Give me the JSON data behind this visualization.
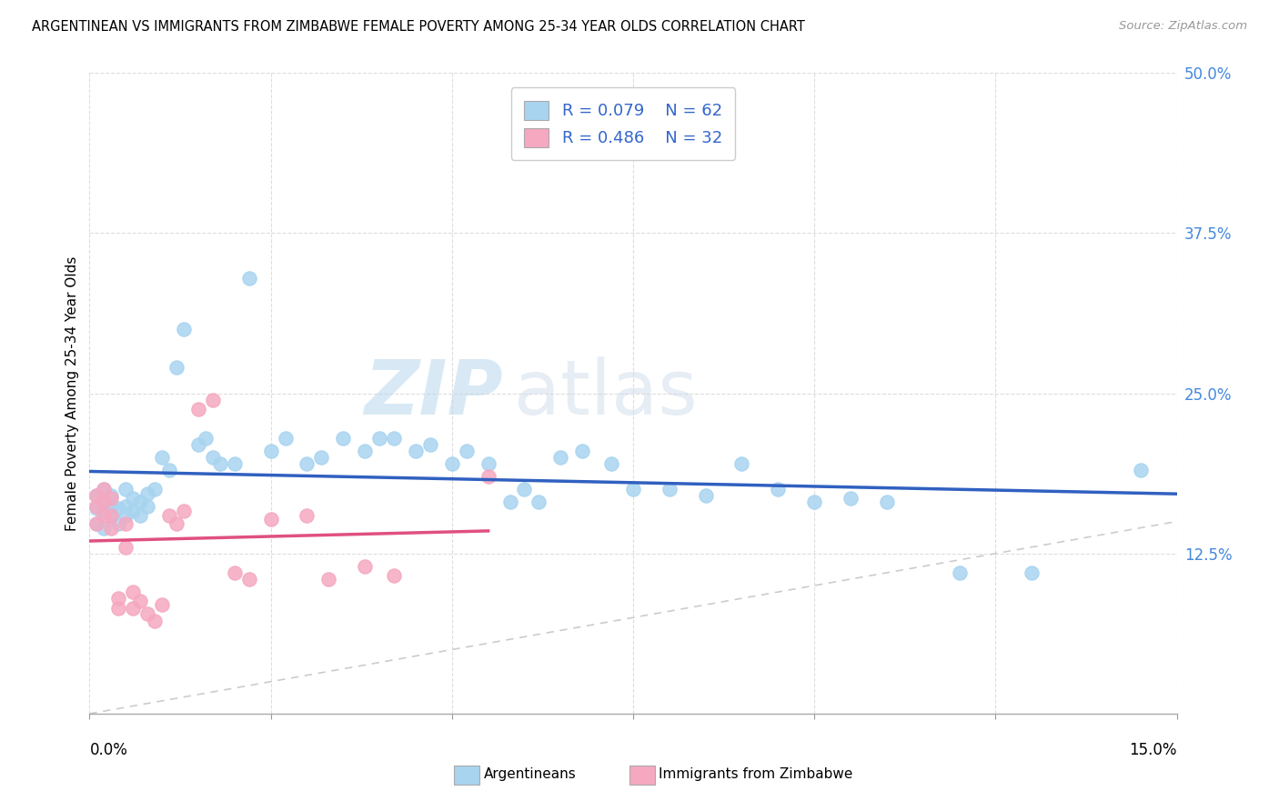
{
  "title": "ARGENTINEAN VS IMMIGRANTS FROM ZIMBABWE FEMALE POVERTY AMONG 25-34 YEAR OLDS CORRELATION CHART",
  "source": "Source: ZipAtlas.com",
  "ylabel": "Female Poverty Among 25-34 Year Olds",
  "yaxis_ticks": [
    0.0,
    0.125,
    0.25,
    0.375,
    0.5
  ],
  "yaxis_tick_labels": [
    "",
    "12.5%",
    "25.0%",
    "37.5%",
    "50.0%"
  ],
  "xaxis_ticks": [
    0.0,
    0.025,
    0.05,
    0.075,
    0.1,
    0.125,
    0.15
  ],
  "xlim": [
    0.0,
    0.15
  ],
  "ylim": [
    0.0,
    0.5
  ],
  "legend_R1": "R = 0.079",
  "legend_N1": "N = 62",
  "legend_R2": "R = 0.486",
  "legend_N2": "N = 32",
  "color_argentinean": "#A8D4F0",
  "color_zimbabwe": "#F5A8C0",
  "color_blue_line": "#3060C0",
  "color_pink_line": "#E05080",
  "color_diag_line": "#CCCCCC",
  "watermark_zip": "ZIP",
  "watermark_atlas": "atlas",
  "legend1_label": "Argentineans",
  "legend2_label": "Immigrants from Zimbabwe",
  "arg_x": [
    0.001,
    0.001,
    0.001,
    0.002,
    0.002,
    0.002,
    0.002,
    0.003,
    0.003,
    0.003,
    0.004,
    0.004,
    0.005,
    0.005,
    0.005,
    0.006,
    0.006,
    0.007,
    0.007,
    0.008,
    0.008,
    0.009,
    0.01,
    0.011,
    0.012,
    0.013,
    0.015,
    0.016,
    0.017,
    0.018,
    0.02,
    0.022,
    0.025,
    0.027,
    0.03,
    0.032,
    0.035,
    0.038,
    0.04,
    0.042,
    0.045,
    0.047,
    0.05,
    0.052,
    0.055,
    0.058,
    0.06,
    0.062,
    0.065,
    0.068,
    0.072,
    0.075,
    0.08,
    0.085,
    0.09,
    0.095,
    0.1,
    0.105,
    0.11,
    0.12,
    0.13,
    0.145
  ],
  "arg_y": [
    0.17,
    0.16,
    0.148,
    0.175,
    0.165,
    0.158,
    0.145,
    0.17,
    0.162,
    0.155,
    0.16,
    0.148,
    0.175,
    0.162,
    0.155,
    0.168,
    0.158,
    0.165,
    0.155,
    0.172,
    0.162,
    0.175,
    0.2,
    0.19,
    0.27,
    0.3,
    0.21,
    0.215,
    0.2,
    0.195,
    0.195,
    0.34,
    0.205,
    0.215,
    0.195,
    0.2,
    0.215,
    0.205,
    0.215,
    0.215,
    0.205,
    0.21,
    0.195,
    0.205,
    0.195,
    0.165,
    0.175,
    0.165,
    0.2,
    0.205,
    0.195,
    0.175,
    0.175,
    0.17,
    0.195,
    0.175,
    0.165,
    0.168,
    0.165,
    0.11,
    0.11,
    0.19
  ],
  "zim_x": [
    0.001,
    0.001,
    0.001,
    0.002,
    0.002,
    0.002,
    0.003,
    0.003,
    0.003,
    0.004,
    0.004,
    0.005,
    0.005,
    0.006,
    0.006,
    0.007,
    0.008,
    0.009,
    0.01,
    0.011,
    0.012,
    0.013,
    0.015,
    0.017,
    0.02,
    0.022,
    0.025,
    0.03,
    0.033,
    0.038,
    0.042,
    0.055
  ],
  "zim_y": [
    0.17,
    0.162,
    0.148,
    0.175,
    0.165,
    0.155,
    0.168,
    0.155,
    0.145,
    0.09,
    0.082,
    0.148,
    0.13,
    0.095,
    0.082,
    0.088,
    0.078,
    0.072,
    0.085,
    0.155,
    0.148,
    0.158,
    0.238,
    0.245,
    0.11,
    0.105,
    0.152,
    0.155,
    0.105,
    0.115,
    0.108,
    0.185
  ]
}
